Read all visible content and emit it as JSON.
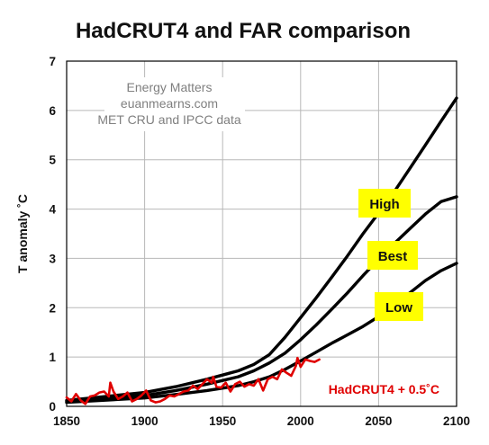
{
  "chart_data": {
    "type": "line",
    "title": "HadCRUT4 and FAR comparison",
    "ylabel": "T anomaly ˚C",
    "xlabel": "",
    "xlim": [
      1850,
      2100
    ],
    "ylim": [
      0,
      7
    ],
    "xticks": [
      1850,
      1900,
      1950,
      2000,
      2050,
      2100
    ],
    "yticks": [
      0,
      1,
      2,
      3,
      4,
      5,
      6,
      7
    ],
    "grid": true,
    "annotation_lines": [
      "Energy Matters",
      "euanmearns.com",
      "MET CRU and IPCC data"
    ],
    "series": [
      {
        "name": "High",
        "color": "#000000",
        "x": [
          1850,
          1900,
          1920,
          1940,
          1960,
          1970,
          1980,
          1990,
          2000,
          2010,
          2020,
          2030,
          2040,
          2050,
          2060,
          2070,
          2080,
          2090,
          2100
        ],
        "values": [
          0.12,
          0.28,
          0.4,
          0.55,
          0.72,
          0.85,
          1.05,
          1.4,
          1.8,
          2.2,
          2.62,
          3.05,
          3.5,
          3.92,
          4.35,
          4.82,
          5.3,
          5.78,
          6.25
        ]
      },
      {
        "name": "Best",
        "color": "#000000",
        "x": [
          1850,
          1900,
          1920,
          1940,
          1960,
          1970,
          1980,
          1990,
          2000,
          2010,
          2020,
          2030,
          2040,
          2050,
          2060,
          2070,
          2080,
          2090,
          2100
        ],
        "values": [
          0.1,
          0.22,
          0.32,
          0.45,
          0.6,
          0.72,
          0.88,
          1.08,
          1.35,
          1.65,
          1.97,
          2.3,
          2.65,
          2.98,
          3.3,
          3.6,
          3.9,
          4.15,
          4.25
        ]
      },
      {
        "name": "Low",
        "color": "#000000",
        "x": [
          1850,
          1900,
          1920,
          1940,
          1960,
          1970,
          1980,
          1990,
          2000,
          2010,
          2020,
          2030,
          2040,
          2050,
          2060,
          2070,
          2080,
          2090,
          2100
        ],
        "values": [
          0.08,
          0.17,
          0.24,
          0.32,
          0.42,
          0.5,
          0.6,
          0.75,
          0.92,
          1.1,
          1.28,
          1.45,
          1.62,
          1.82,
          2.05,
          2.3,
          2.55,
          2.75,
          2.9
        ]
      },
      {
        "name": "HadCRUT4 + 0.5˚C",
        "color": "#e00000",
        "x": [
          1850,
          1853,
          1856,
          1859,
          1862,
          1865,
          1868,
          1871,
          1874,
          1877,
          1878,
          1880,
          1883,
          1886,
          1889,
          1892,
          1895,
          1898,
          1901,
          1904,
          1907,
          1910,
          1913,
          1916,
          1919,
          1922,
          1925,
          1928,
          1931,
          1934,
          1937,
          1940,
          1943,
          1944,
          1946,
          1949,
          1952,
          1955,
          1958,
          1961,
          1964,
          1967,
          1970,
          1973,
          1976,
          1979,
          1982,
          1985,
          1988,
          1991,
          1994,
          1997,
          1998,
          2000,
          2003,
          2006,
          2009,
          2012
        ],
        "values": [
          0.18,
          0.1,
          0.25,
          0.12,
          0.05,
          0.2,
          0.22,
          0.28,
          0.3,
          0.2,
          0.48,
          0.3,
          0.15,
          0.2,
          0.28,
          0.1,
          0.15,
          0.22,
          0.32,
          0.12,
          0.08,
          0.1,
          0.15,
          0.22,
          0.2,
          0.25,
          0.3,
          0.32,
          0.42,
          0.35,
          0.45,
          0.55,
          0.48,
          0.6,
          0.4,
          0.38,
          0.48,
          0.3,
          0.45,
          0.5,
          0.4,
          0.45,
          0.42,
          0.55,
          0.32,
          0.55,
          0.6,
          0.55,
          0.75,
          0.68,
          0.62,
          0.82,
          0.98,
          0.8,
          0.95,
          0.92,
          0.9,
          0.95
        ]
      }
    ]
  }
}
